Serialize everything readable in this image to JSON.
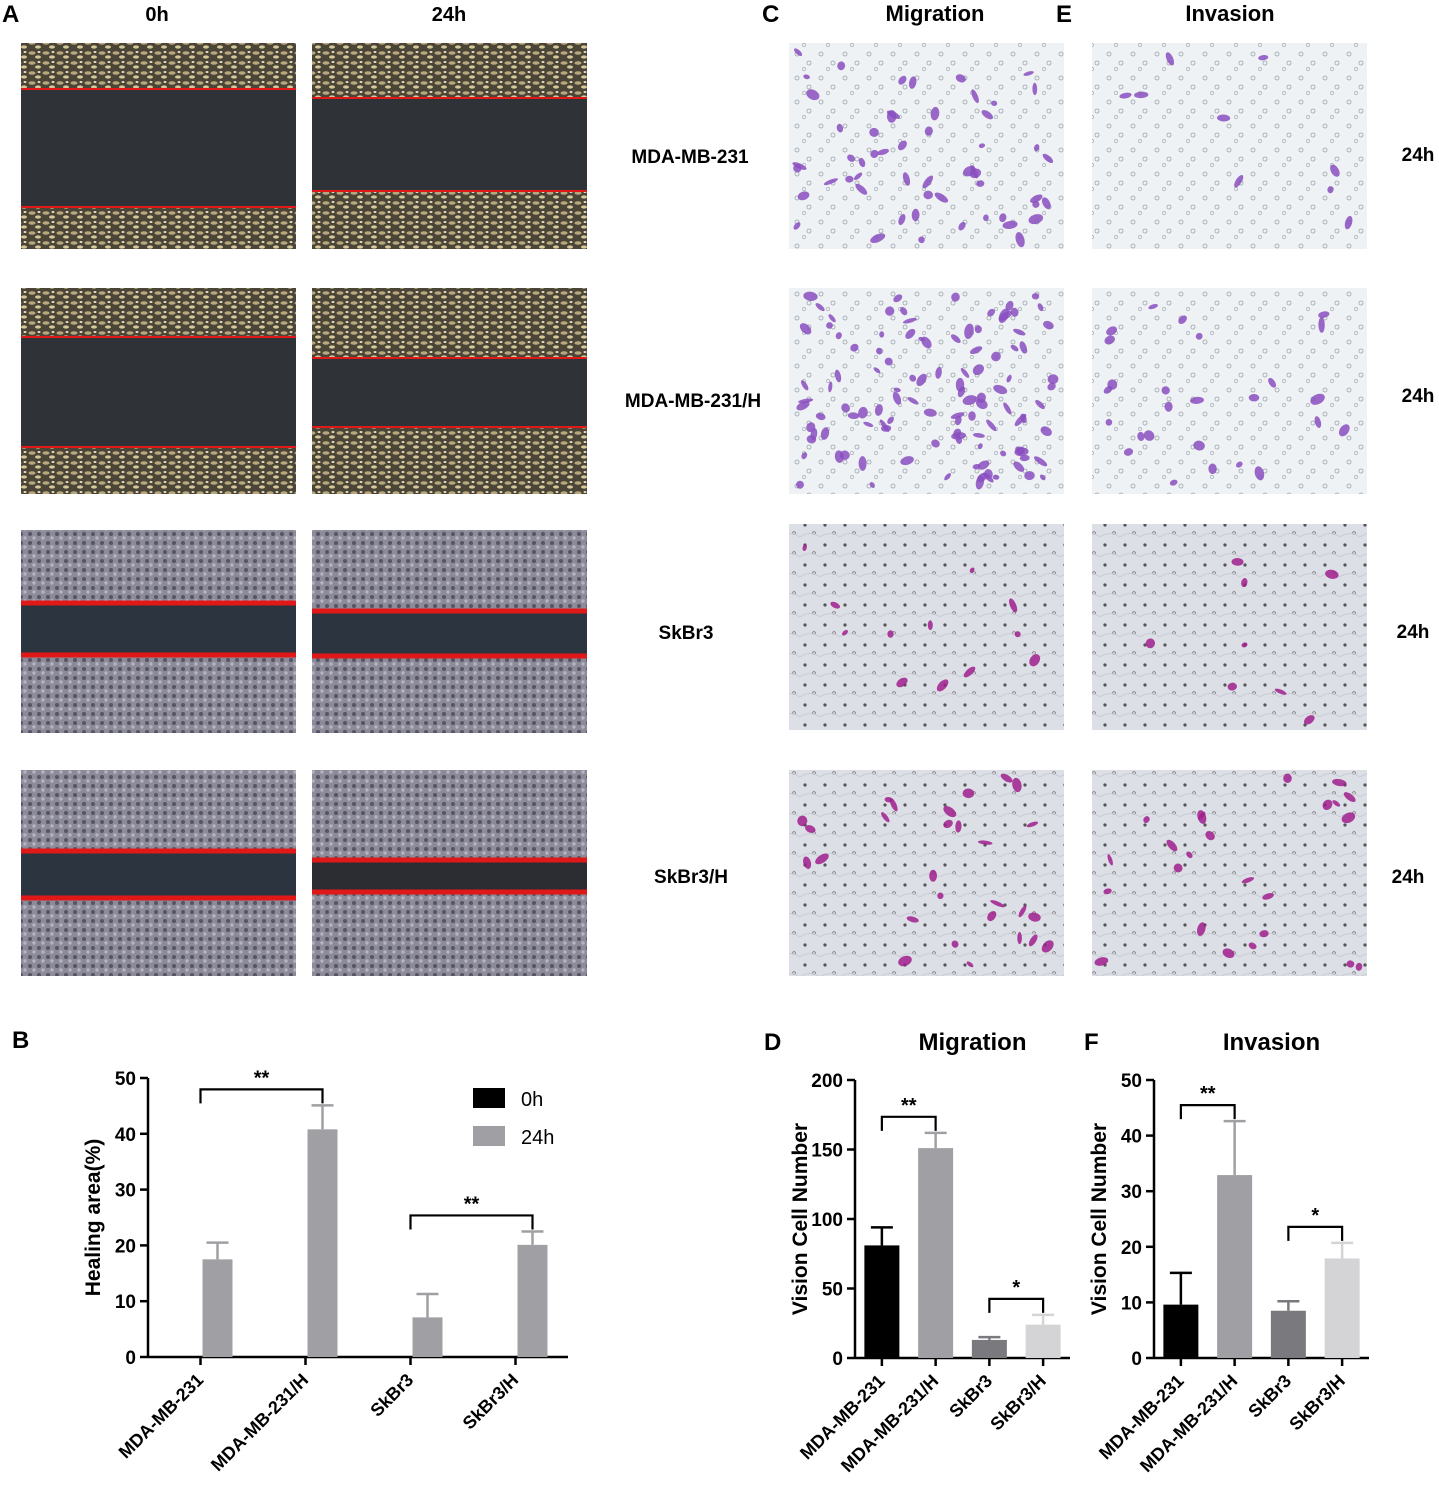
{
  "panel_labels": {
    "a": "A",
    "b": "B",
    "c": "C",
    "d": "D",
    "e": "E",
    "f": "F"
  },
  "panel_a": {
    "col_0h": "0h",
    "col_24h": "24h",
    "row_labels": [
      "MDA-MB-231",
      "MDA-MB-231/H",
      "SkBr3",
      "SkBr3/H"
    ]
  },
  "panel_c": {
    "title": "Migration"
  },
  "panel_e": {
    "title": "Invasion",
    "row_labels": [
      "24h",
      "24h",
      "24h",
      "24h"
    ]
  },
  "colors": {
    "bar_0h": "#000000",
    "bar_24h": "#a0a0a4",
    "mig_bars": [
      "#000000",
      "#a0a0a4",
      "#7a7a7e",
      "#d4d4d6"
    ],
    "scratch_line": "#e01818",
    "stain_purple": "#8a4fbf",
    "stain_magenta": "#a0208c"
  },
  "chart_data": [
    {
      "type": "bar",
      "panel": "B",
      "title": "",
      "ylabel": "Healing area(%)",
      "xlabel": "",
      "ylim": [
        0,
        50
      ],
      "yticks": [
        0,
        10,
        20,
        30,
        40,
        50
      ],
      "categories": [
        "MDA-MB-231",
        "MDA-MB-231/H",
        "SkBr3",
        "SkBr3/H"
      ],
      "series": [
        {
          "name": "0h",
          "values": [
            0,
            0,
            0,
            0
          ],
          "errors": [
            0,
            0,
            0,
            0
          ]
        },
        {
          "name": "24h",
          "values": [
            17.5,
            40.8,
            7.1,
            20.1
          ],
          "errors": [
            3.0,
            4.3,
            4.2,
            2.4
          ]
        }
      ],
      "legend": "top-right",
      "significance": [
        {
          "from": 0,
          "to": 1,
          "label": "**"
        },
        {
          "from": 2,
          "to": 3,
          "label": "**"
        }
      ]
    },
    {
      "type": "bar",
      "panel": "D",
      "title": "Migration",
      "ylabel": "Vision Cell Number",
      "xlabel": "",
      "ylim": [
        0,
        200
      ],
      "yticks": [
        0,
        50,
        100,
        150,
        200
      ],
      "categories": [
        "MDA-MB-231",
        "MDA-MB-231/H",
        "SkBr3",
        "SkBr3/H"
      ],
      "values": [
        81,
        151,
        13,
        24
      ],
      "errors": [
        13,
        11,
        2,
        7
      ],
      "significance": [
        {
          "from": 0,
          "to": 1,
          "label": "**"
        },
        {
          "from": 2,
          "to": 3,
          "label": "*"
        }
      ]
    },
    {
      "type": "bar",
      "panel": "F",
      "title": "Invasion",
      "ylabel": "Vision Cell Number",
      "xlabel": "",
      "ylim": [
        0,
        50
      ],
      "yticks": [
        0,
        10,
        20,
        30,
        40,
        50
      ],
      "categories": [
        "MDA-MB-231",
        "MDA-MB-231/H",
        "SkBr3",
        "SkBr3/H"
      ],
      "values": [
        9.6,
        32.9,
        8.5,
        17.9
      ],
      "errors": [
        5.7,
        9.7,
        1.7,
        2.8
      ],
      "significance": [
        {
          "from": 0,
          "to": 1,
          "label": "**"
        },
        {
          "from": 2,
          "to": 3,
          "label": "*"
        }
      ]
    }
  ]
}
